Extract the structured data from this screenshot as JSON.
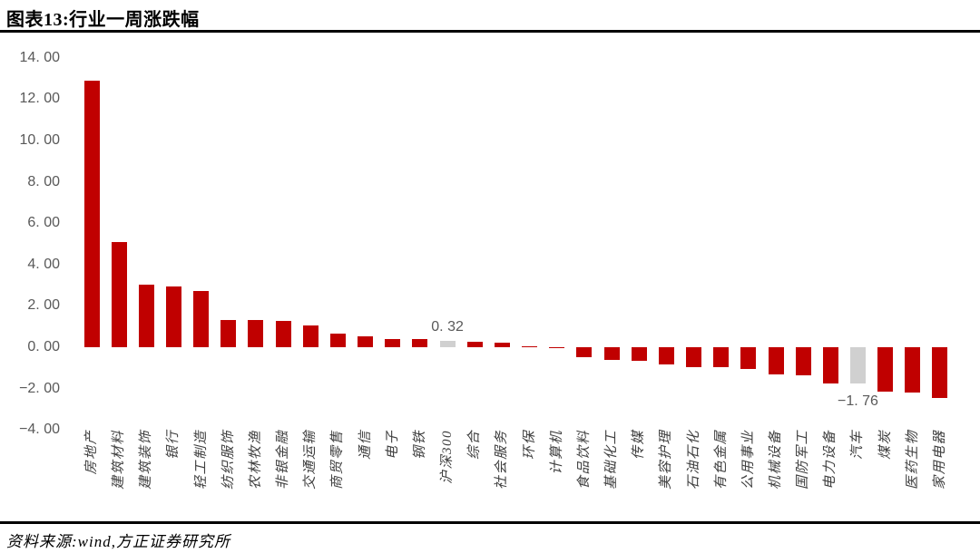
{
  "header": {
    "title": "图表13:行业一周涨跌幅"
  },
  "footer": {
    "source_label": "资料来源:wind,方正证券研究所"
  },
  "colors": {
    "bar_red": "#C00000",
    "bar_highlight_gray": "#D0D0D0",
    "axis_text": "#595959",
    "category_text": "#3F3F3F",
    "rule_black": "#000000"
  },
  "chart_data": {
    "type": "bar",
    "title": "行业一周涨跌幅",
    "categories": [
      "房地产",
      "建筑材料",
      "建筑装饰",
      "银行",
      "轻工制造",
      "纺织服饰",
      "农林牧渔",
      "非银金融",
      "交通运输",
      "商贸零售",
      "通信",
      "电子",
      "钢铁",
      "沪深300",
      "综合",
      "社会服务",
      "环保",
      "计算机",
      "食品饮料",
      "基础化工",
      "传媒",
      "美容护理",
      "石油石化",
      "有色金属",
      "公用事业",
      "机械设备",
      "国防军工",
      "电力设备",
      "汽车",
      "煤炭",
      "医药生物",
      "家用电器"
    ],
    "values": [
      12.88,
      5.08,
      3.02,
      2.94,
      2.72,
      1.32,
      1.32,
      1.27,
      1.05,
      0.65,
      0.52,
      0.4,
      0.38,
      0.32,
      0.27,
      0.2,
      0.05,
      -0.03,
      -0.48,
      -0.6,
      -0.64,
      -0.83,
      -0.95,
      -0.98,
      -1.07,
      -1.3,
      -1.38,
      -1.74,
      -1.76,
      -2.15,
      -2.2,
      -2.45
    ],
    "highlight_indices": [
      13,
      28
    ],
    "data_labels": [
      {
        "index": 13,
        "text": "0. 32",
        "position": "above"
      },
      {
        "index": 28,
        "text": "−1. 76",
        "position": "below"
      }
    ],
    "y_tick_values": [
      14,
      12,
      10,
      8,
      6,
      4,
      2,
      0,
      -2,
      -4
    ],
    "y_tick_labels": [
      "14. 00",
      "12. 00",
      "10. 00",
      "8. 00",
      "6. 00",
      "4. 00",
      "2. 00",
      "0. 00",
      "−2. 00",
      "−4. 00"
    ],
    "ylim": [
      -4,
      14
    ],
    "grid": false,
    "legend": "none",
    "xlabel": "",
    "ylabel": ""
  }
}
